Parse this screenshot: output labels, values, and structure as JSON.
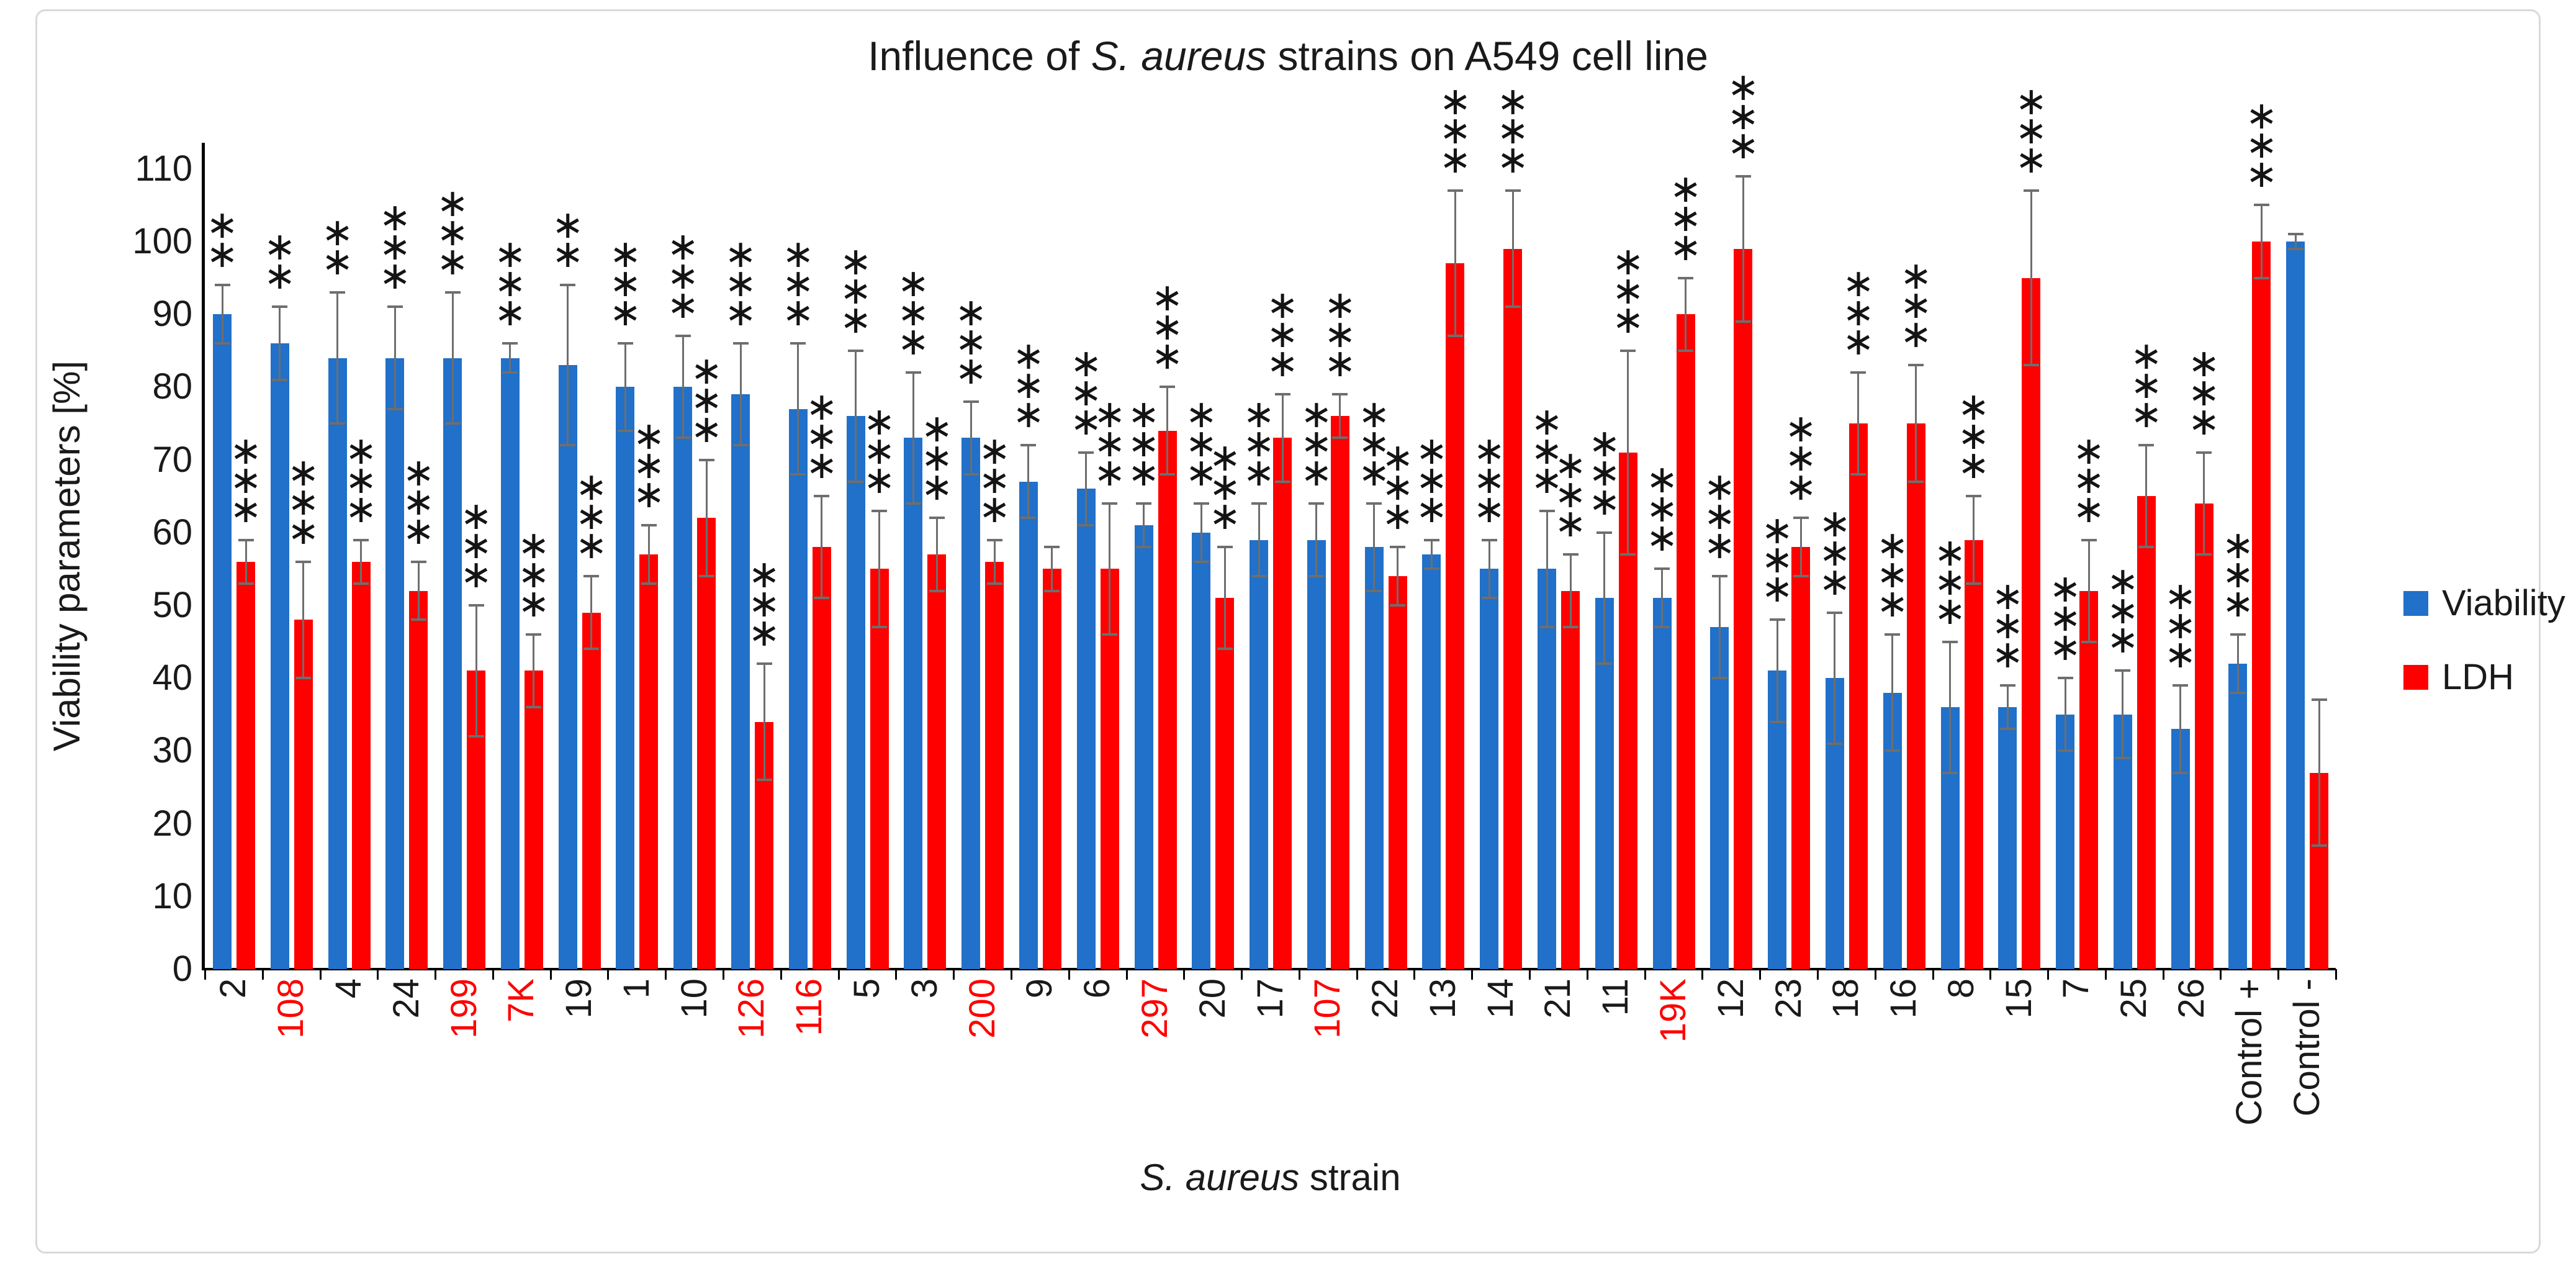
{
  "frame": {
    "border_color": "#d9d9d9"
  },
  "chart_data": {
    "type": "bar",
    "title": {
      "prefix": "Influence of ",
      "italic": "S. aureus",
      "suffix": " strains on A549 cell line"
    },
    "ylabel": "Viability parameters [%]",
    "xlabel": {
      "italic": "S. aureus",
      "suffix": " strain"
    },
    "ylim": [
      0,
      115
    ],
    "yticks": [
      0,
      10,
      20,
      30,
      40,
      50,
      60,
      70,
      80,
      90,
      100,
      110
    ],
    "grid": false,
    "legend_position": "right",
    "colors": {
      "viability": "#2170c9",
      "ldh": "#fe0000",
      "error_bar": "#6e6e6e",
      "axis": "#000000",
      "tick_label": "#1a1a1a",
      "red_category_label": "#ff0000"
    },
    "categories": [
      {
        "label": "2",
        "label_color": "black"
      },
      {
        "label": "108",
        "label_color": "red"
      },
      {
        "label": "4",
        "label_color": "black"
      },
      {
        "label": "24",
        "label_color": "black"
      },
      {
        "label": "199",
        "label_color": "red"
      },
      {
        "label": "7K",
        "label_color": "red"
      },
      {
        "label": "19",
        "label_color": "black"
      },
      {
        "label": "1",
        "label_color": "black"
      },
      {
        "label": "10",
        "label_color": "black"
      },
      {
        "label": "126",
        "label_color": "red"
      },
      {
        "label": "116",
        "label_color": "red"
      },
      {
        "label": "5",
        "label_color": "black"
      },
      {
        "label": "3",
        "label_color": "black"
      },
      {
        "label": "200",
        "label_color": "red"
      },
      {
        "label": "9",
        "label_color": "black"
      },
      {
        "label": "6",
        "label_color": "black"
      },
      {
        "label": "297",
        "label_color": "red"
      },
      {
        "label": "20",
        "label_color": "black"
      },
      {
        "label": "17",
        "label_color": "black"
      },
      {
        "label": "107",
        "label_color": "red"
      },
      {
        "label": "22",
        "label_color": "black"
      },
      {
        "label": "13",
        "label_color": "black"
      },
      {
        "label": "14",
        "label_color": "black"
      },
      {
        "label": "21",
        "label_color": "black"
      },
      {
        "label": "11",
        "label_color": "black"
      },
      {
        "label": "19K",
        "label_color": "red"
      },
      {
        "label": "12",
        "label_color": "black"
      },
      {
        "label": "23",
        "label_color": "black"
      },
      {
        "label": "18",
        "label_color": "black"
      },
      {
        "label": "16",
        "label_color": "black"
      },
      {
        "label": "8",
        "label_color": "black"
      },
      {
        "label": "15",
        "label_color": "black"
      },
      {
        "label": "7",
        "label_color": "black"
      },
      {
        "label": "25",
        "label_color": "black"
      },
      {
        "label": "26",
        "label_color": "black"
      },
      {
        "label": "Control +",
        "label_color": "black"
      },
      {
        "label": "Control -",
        "label_color": "black"
      }
    ],
    "series": [
      {
        "name": "Viability",
        "color": "#2170c9",
        "values": [
          90,
          86,
          84,
          84,
          84,
          84,
          83,
          80,
          80,
          79,
          77,
          76,
          73,
          73,
          67,
          66,
          61,
          60,
          59,
          59,
          58,
          57,
          55,
          55,
          51,
          51,
          47,
          41,
          40,
          38,
          36,
          36,
          35,
          35,
          33,
          42,
          100
        ],
        "errors": [
          4,
          5,
          9,
          7,
          9,
          2,
          11,
          6,
          7,
          7,
          9,
          9,
          9,
          5,
          5,
          5,
          3,
          4,
          5,
          5,
          6,
          2,
          4,
          8,
          9,
          4,
          7,
          7,
          9,
          8,
          9,
          3,
          5,
          6,
          6,
          4,
          1
        ],
        "sig": [
          "**",
          "**",
          "**",
          "***",
          "***",
          "***",
          "**",
          "***",
          "***",
          "***",
          "***",
          "***",
          "***",
          "***",
          "***",
          "***",
          "***",
          "***",
          "***",
          "***",
          "***",
          "***",
          "***",
          "***",
          "***",
          "***",
          "***",
          "***",
          "***",
          "***",
          "***",
          "***",
          "***",
          "***",
          "***",
          "***",
          ""
        ]
      },
      {
        "name": "LDH",
        "color": "#fe0000",
        "values": [
          56,
          48,
          56,
          52,
          41,
          41,
          49,
          57,
          62,
          34,
          58,
          55,
          57,
          56,
          55,
          55,
          74,
          51,
          73,
          76,
          54,
          97,
          99,
          52,
          71,
          90,
          99,
          58,
          75,
          75,
          59,
          95,
          52,
          65,
          64,
          100,
          27
        ],
        "errors": [
          3,
          8,
          3,
          4,
          9,
          5,
          5,
          4,
          8,
          8,
          7,
          8,
          5,
          3,
          3,
          9,
          6,
          7,
          6,
          3,
          4,
          10,
          8,
          5,
          14,
          5,
          10,
          4,
          7,
          8,
          6,
          12,
          7,
          7,
          7,
          5,
          10
        ],
        "sig": [
          "***",
          "***",
          "***",
          "***",
          "***",
          "***",
          "***",
          "***",
          "***",
          "***",
          "***",
          "***",
          "***",
          "***",
          "",
          "***",
          "***",
          "***",
          "***",
          "***",
          "***",
          "***",
          "***",
          "***",
          "***",
          "***",
          "***",
          "***",
          "***",
          "***",
          "***",
          "***",
          "***",
          "***",
          "***",
          "***",
          ""
        ]
      }
    ]
  }
}
